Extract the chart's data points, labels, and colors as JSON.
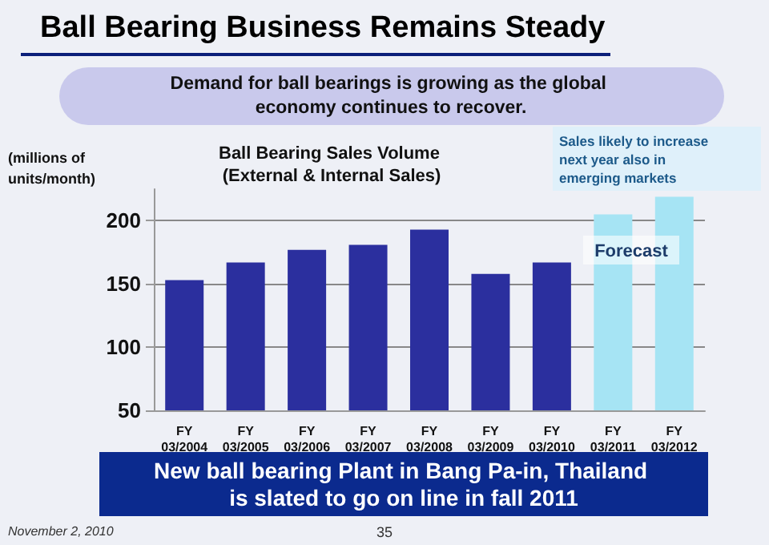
{
  "chart_data": {
    "type": "bar",
    "title": "Ball Bearing Business Remains Steady",
    "subtitle": "Demand for ball bearings is growing as the global economy continues to recover.",
    "ylabel": "(millions of units/month)",
    "categories": [
      "FY\n03/2004",
      "FY\n03/2005",
      "FY\n03/2006",
      "FY\n03/2007",
      "FY\n03/2008",
      "FY\n03/2009",
      "FY\n03/2010",
      "FY\n03/2011",
      "FY\n03/2012"
    ],
    "values": [
      153,
      167,
      177,
      181,
      193,
      158,
      167,
      205,
      219
    ],
    "colors": [
      "#2b2f9e",
      "#2b2f9e",
      "#2b2f9e",
      "#2b2f9e",
      "#2b2f9e",
      "#2b2f9e",
      "#2b2f9e",
      "#a6e4f4",
      "#a6e4f4"
    ],
    "ylim": [
      50,
      225
    ],
    "yticks": [
      50,
      100,
      150,
      200
    ],
    "grid": "y",
    "annotations": [
      "Ball Bearing Sales Volume (External & Internal Sales)",
      "Sales likely to increase next year also in emerging markets",
      "Forecast",
      "New ball bearing Plant in Bang Pa-in, Thailand is slated to go on line in fall 2011",
      "November 2, 2010",
      "35"
    ]
  }
}
